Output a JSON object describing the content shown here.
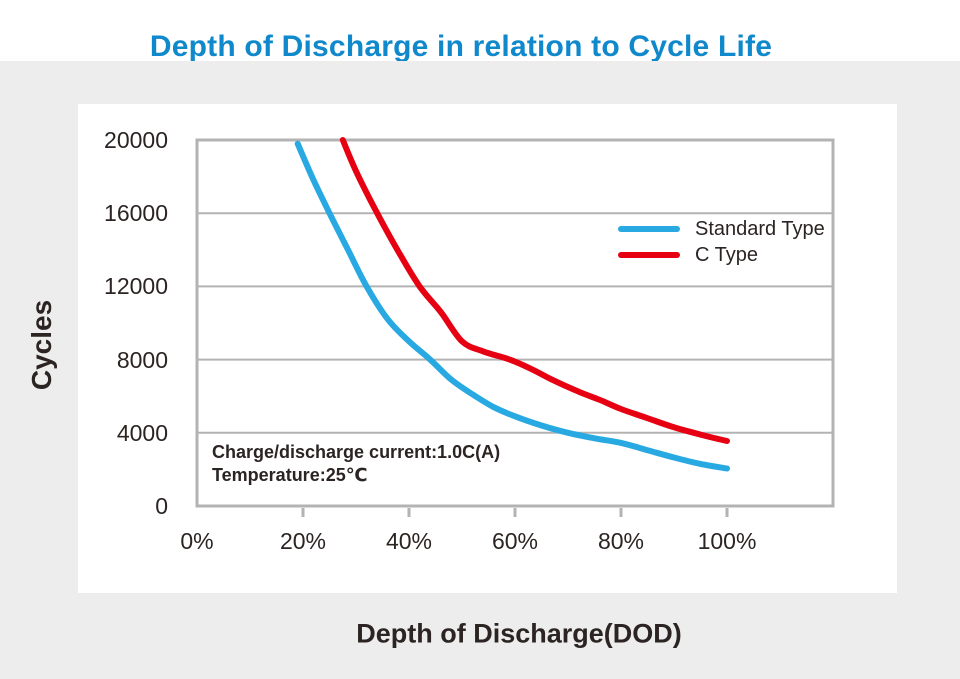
{
  "page": {
    "colors": {
      "title_blue": "#0f89cb",
      "background_gray": "#ededed",
      "panel_white": "#ffffff",
      "grid_gray": "#b3b3b3",
      "text_dark": "#2b2422",
      "standard_type_blue": "#29a9e1",
      "c_type_red": "#e60012"
    }
  },
  "chart_data": {
    "type": "line",
    "title": "Depth of Discharge in relation to Cycle Life",
    "xlabel": "Depth of Discharge(DOD)",
    "ylabel": "Cycles",
    "grid": "horizontal",
    "legend_position": "upper right inside plot",
    "x_range": [
      0,
      120
    ],
    "y_range": [
      0,
      20000
    ],
    "x_ticks": [
      0,
      20,
      40,
      60,
      80,
      100
    ],
    "x_tick_labels": [
      "0%",
      "20%",
      "40%",
      "60%",
      "80%",
      "100%"
    ],
    "y_ticks": [
      0,
      4000,
      8000,
      12000,
      16000,
      20000
    ],
    "y_tick_labels": [
      "0",
      "4000",
      "8000",
      "12000",
      "16000",
      "20000"
    ],
    "series": [
      {
        "name": "Standard Type",
        "color": "#29a9e1",
        "points": [
          [
            19,
            19800
          ],
          [
            22,
            17800
          ],
          [
            25,
            16000
          ],
          [
            28.5,
            14000
          ],
          [
            32,
            12000
          ],
          [
            36,
            10200
          ],
          [
            40,
            9000
          ],
          [
            44,
            8000
          ],
          [
            48,
            6900
          ],
          [
            52,
            6100
          ],
          [
            56,
            5400
          ],
          [
            60,
            4900
          ],
          [
            65,
            4400
          ],
          [
            70,
            4000
          ],
          [
            75,
            3700
          ],
          [
            80,
            3450
          ],
          [
            85,
            3050
          ],
          [
            90,
            2650
          ],
          [
            95,
            2300
          ],
          [
            100,
            2050
          ]
        ]
      },
      {
        "name": "C Type",
        "color": "#e60012",
        "points": [
          [
            27.5,
            20000
          ],
          [
            30,
            18300
          ],
          [
            34,
            16000
          ],
          [
            38,
            13900
          ],
          [
            42,
            12000
          ],
          [
            46,
            10600
          ],
          [
            50,
            9000
          ],
          [
            54,
            8450
          ],
          [
            59,
            8000
          ],
          [
            63,
            7500
          ],
          [
            67,
            6900
          ],
          [
            72,
            6250
          ],
          [
            76,
            5800
          ],
          [
            80,
            5300
          ],
          [
            85,
            4800
          ],
          [
            90,
            4300
          ],
          [
            95,
            3900
          ],
          [
            100,
            3550
          ]
        ]
      }
    ],
    "annotation": {
      "lines": [
        "Charge/discharge current:1.0C(A)",
        "Temperature:25℃"
      ]
    }
  }
}
